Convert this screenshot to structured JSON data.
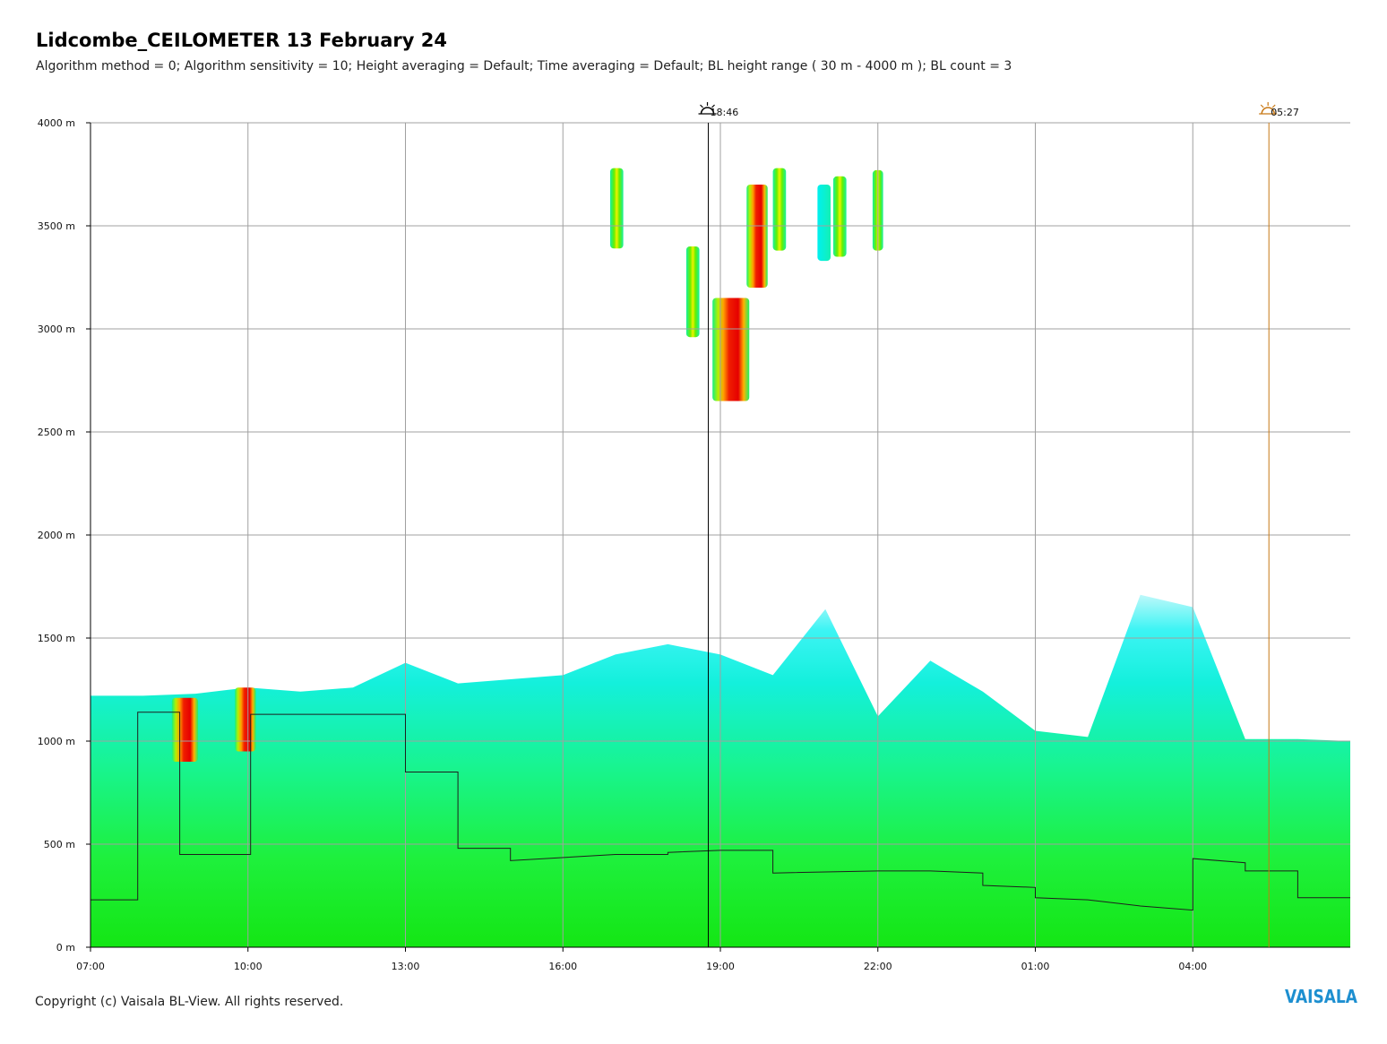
{
  "title": "Lidcombe_CEILOMETER 13 February 24",
  "subtitle": "Algorithm method = 0; Algorithm sensitivity = 10; Height averaging = Default; Time averaging = Default; BL height range ( 30 m - 4000 m ); BL count = 3",
  "footer": "Copyright (c) Vaisala BL-View. All rights reserved.",
  "logo": "VAISALA",
  "colors": {
    "grid": "#a0a0a0",
    "sunset_marker": "#000000",
    "sunrise_marker": "#c87814",
    "bl_layer": "#1e6e5a",
    "cloud_base": "#969696",
    "ymark": "#ffff64"
  },
  "chart_data": {
    "type": "heatmap",
    "ylim": [
      0,
      4000
    ],
    "y_unit": "m",
    "x_start_hour": 7,
    "x_end_hour": 31,
    "y_ticks": [
      {
        "value": 0,
        "label": "0 m"
      },
      {
        "value": 500,
        "label": "500 m"
      },
      {
        "value": 1000,
        "label": "1000 m"
      },
      {
        "value": 1500,
        "label": "1500 m"
      },
      {
        "value": 2000,
        "label": "2000 m"
      },
      {
        "value": 2500,
        "label": "2500 m"
      },
      {
        "value": 3000,
        "label": "3000 m"
      },
      {
        "value": 3500,
        "label": "3500 m"
      },
      {
        "value": 4000,
        "label": "4000 m"
      }
    ],
    "x_ticks": [
      {
        "value": 7,
        "label": "07:00"
      },
      {
        "value": 10,
        "label": "10:00"
      },
      {
        "value": 13,
        "label": "13:00"
      },
      {
        "value": 16,
        "label": "16:00"
      },
      {
        "value": 19,
        "label": "19:00"
      },
      {
        "value": 22,
        "label": "22:00"
      },
      {
        "value": 25,
        "label": "01:00"
      },
      {
        "value": 28,
        "label": "04:00"
      }
    ],
    "markers": [
      {
        "type": "sunset",
        "hour": 18.77,
        "label": "18:46",
        "icon": "sunset-icon"
      },
      {
        "type": "sunrise",
        "hour": 29.45,
        "label": "05:27",
        "icon": "sunrise-icon"
      }
    ],
    "backscatter_regions": [
      {
        "name": "surface-layer",
        "t0": 7.0,
        "t1": 31.0,
        "top_profile": [
          [
            7,
            1220
          ],
          [
            8,
            1220
          ],
          [
            9,
            1230
          ],
          [
            10,
            1260
          ],
          [
            11,
            1240
          ],
          [
            12,
            1260
          ],
          [
            13,
            1380
          ],
          [
            14,
            1280
          ],
          [
            15,
            1300
          ],
          [
            16,
            1320
          ],
          [
            17,
            1420
          ],
          [
            18,
            1470
          ],
          [
            19,
            1420
          ],
          [
            20,
            1320
          ],
          [
            21,
            1640
          ],
          [
            22,
            1120
          ],
          [
            23,
            1390
          ],
          [
            24,
            1240
          ],
          [
            25,
            1050
          ],
          [
            26,
            1020
          ],
          [
            27,
            1710
          ],
          [
            28,
            1650
          ],
          [
            29,
            1010
          ],
          [
            30,
            1010
          ],
          [
            31,
            1000
          ]
        ],
        "level": "low"
      },
      {
        "name": "cloud-1",
        "t0": 8.55,
        "t1": 9.05,
        "y0": 900,
        "y1": 1210,
        "level": "high"
      },
      {
        "name": "cloud-2",
        "t0": 9.75,
        "t1": 10.15,
        "y0": 950,
        "y1": 1260,
        "level": "high"
      },
      {
        "name": "cloud-3",
        "t0": 16.9,
        "t1": 17.15,
        "y0": 3390,
        "y1": 3780,
        "level": "medium"
      },
      {
        "name": "cloud-4",
        "t0": 18.35,
        "t1": 18.6,
        "y0": 2960,
        "y1": 3400,
        "level": "medium"
      },
      {
        "name": "cloud-5",
        "t0": 18.85,
        "t1": 19.55,
        "y0": 2650,
        "y1": 3150,
        "level": "high"
      },
      {
        "name": "cloud-6",
        "t0": 19.5,
        "t1": 19.9,
        "y0": 3200,
        "y1": 3700,
        "level": "high"
      },
      {
        "name": "cloud-7",
        "t0": 20.0,
        "t1": 20.25,
        "y0": 3380,
        "y1": 3780,
        "level": "medium"
      },
      {
        "name": "cloud-8",
        "t0": 20.85,
        "t1": 21.1,
        "y0": 3330,
        "y1": 3700,
        "level": "low"
      },
      {
        "name": "cloud-9",
        "t0": 21.15,
        "t1": 21.4,
        "y0": 3350,
        "y1": 3740,
        "level": "medium"
      },
      {
        "name": "cloud-10",
        "t0": 21.9,
        "t1": 22.1,
        "y0": 3380,
        "y1": 3770,
        "level": "medium"
      }
    ],
    "bl_step_line": [
      [
        7.0,
        320
      ],
      [
        7.0,
        230
      ],
      [
        7.9,
        230
      ],
      [
        7.9,
        1140
      ],
      [
        8.7,
        1140
      ],
      [
        8.7,
        450
      ],
      [
        10.05,
        450
      ],
      [
        10.05,
        1130
      ],
      [
        13.0,
        1130
      ],
      [
        13.0,
        850
      ],
      [
        14.0,
        850
      ],
      [
        14.0,
        480
      ],
      [
        15.0,
        480
      ],
      [
        15.0,
        420
      ],
      [
        17.0,
        450
      ],
      [
        18.0,
        450
      ],
      [
        18.0,
        460
      ],
      [
        19.0,
        470
      ],
      [
        20.0,
        470
      ],
      [
        20.0,
        360
      ],
      [
        22.0,
        370
      ],
      [
        23.0,
        370
      ],
      [
        24.0,
        360
      ],
      [
        24.0,
        300
      ],
      [
        25.0,
        290
      ],
      [
        25.0,
        240
      ],
      [
        26.0,
        230
      ],
      [
        27.0,
        200
      ],
      [
        28.0,
        180
      ],
      [
        28.0,
        430
      ],
      [
        29.0,
        410
      ],
      [
        29.0,
        370
      ],
      [
        30.0,
        370
      ],
      [
        30.0,
        240
      ],
      [
        31.0,
        240
      ]
    ]
  }
}
